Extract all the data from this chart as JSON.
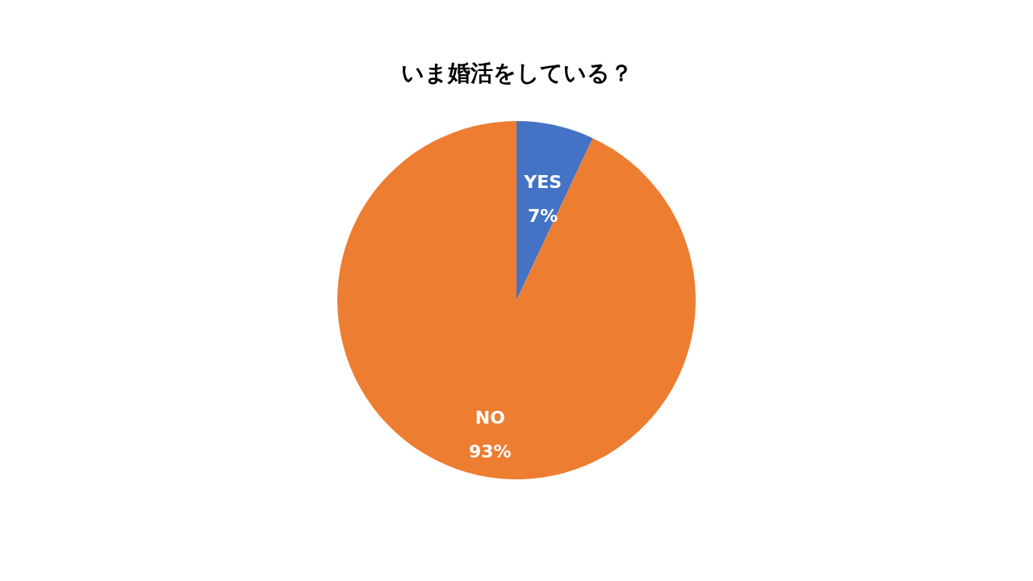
{
  "chart_data": {
    "type": "pie",
    "title": "いま婚活をしている？",
    "categories": [
      "YES",
      "NO"
    ],
    "values": [
      7,
      93
    ],
    "colors": [
      "#4472c4",
      "#ed7d31"
    ],
    "value_labels": [
      "7%",
      "93%"
    ]
  }
}
